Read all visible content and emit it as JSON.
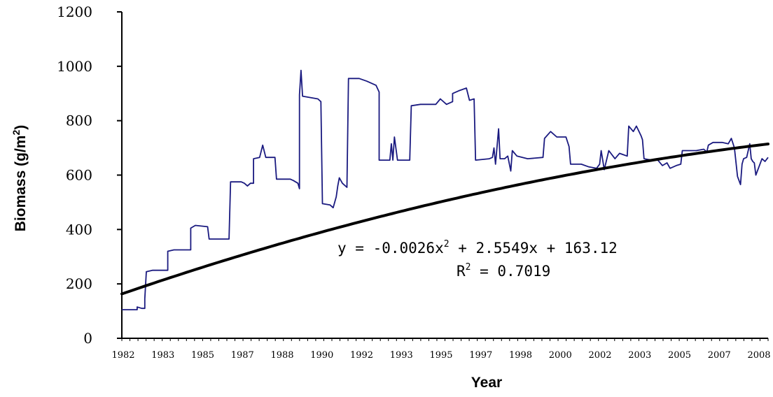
{
  "chart_data": {
    "type": "line",
    "xlabel": "Year",
    "ylabel": "Biomass (g/m",
    "ylabel_sup": "2",
    "ylabel_tail": ")",
    "ylim": [
      0,
      1200
    ],
    "yticks": [
      0,
      200,
      400,
      600,
      800,
      1000,
      1200
    ],
    "xticks": [
      "1982",
      "1983",
      "1985",
      "1987",
      "1988",
      "1990",
      "1992",
      "1993",
      "1995",
      "1997",
      "1998",
      "2000",
      "2002",
      "2003",
      "2005",
      "2007",
      "2008"
    ],
    "x_index_range": [
      0,
      320
    ],
    "colors": {
      "observed": "#1a1a80",
      "trend": "#000000"
    },
    "trend": {
      "a": -0.0026,
      "b": 2.5549,
      "c": 163.12
    },
    "equation_parts": [
      "y = -0.0026x",
      "2",
      " + 2.5549x + 163.12"
    ],
    "r2_parts": [
      "R",
      "2",
      " = 0.7019"
    ],
    "series": [
      {
        "values": [
          [
            0,
            105
          ],
          [
            10,
            105
          ],
          [
            10,
            115
          ],
          [
            13,
            110
          ],
          [
            15,
            110
          ],
          [
            15,
            145
          ],
          [
            16,
            245
          ],
          [
            20,
            250
          ],
          [
            30,
            250
          ],
          [
            30,
            320
          ],
          [
            34,
            325
          ],
          [
            45,
            325
          ],
          [
            45,
            405
          ],
          [
            48,
            415
          ],
          [
            56,
            410
          ],
          [
            57,
            365
          ],
          [
            70,
            365
          ],
          [
            71,
            575
          ],
          [
            78,
            575
          ],
          [
            80,
            570
          ],
          [
            82,
            560
          ],
          [
            84,
            570
          ],
          [
            86,
            570
          ],
          [
            86,
            660
          ],
          [
            90,
            665
          ],
          [
            92,
            710
          ],
          [
            94,
            665
          ],
          [
            100,
            665
          ],
          [
            101,
            585
          ],
          [
            110,
            585
          ],
          [
            112,
            580
          ],
          [
            115,
            570
          ],
          [
            116,
            550
          ],
          [
            116,
            895
          ],
          [
            117,
            985
          ],
          [
            118,
            890
          ],
          [
            128,
            880
          ],
          [
            130,
            870
          ],
          [
            131,
            495
          ],
          [
            136,
            490
          ],
          [
            138,
            480
          ],
          [
            140,
            520
          ],
          [
            141,
            560
          ],
          [
            142,
            590
          ],
          [
            144,
            570
          ],
          [
            147,
            555
          ],
          [
            148,
            955
          ],
          [
            155,
            955
          ],
          [
            160,
            945
          ],
          [
            166,
            930
          ],
          [
            168,
            905
          ],
          [
            168,
            655
          ],
          [
            175,
            655
          ],
          [
            176,
            715
          ],
          [
            177,
            655
          ],
          [
            178,
            740
          ],
          [
            180,
            655
          ],
          [
            188,
            655
          ],
          [
            189,
            855
          ],
          [
            195,
            860
          ],
          [
            205,
            860
          ],
          [
            208,
            880
          ],
          [
            212,
            860
          ],
          [
            216,
            870
          ],
          [
            216,
            900
          ],
          [
            220,
            910
          ],
          [
            225,
            920
          ],
          [
            227,
            875
          ],
          [
            230,
            880
          ],
          [
            231,
            655
          ],
          [
            240,
            660
          ],
          [
            242,
            665
          ],
          [
            243,
            700
          ],
          [
            244,
            640
          ],
          [
            246,
            770
          ],
          [
            247,
            660
          ],
          [
            250,
            660
          ],
          [
            252,
            670
          ],
          [
            254,
            615
          ],
          [
            255,
            690
          ],
          [
            258,
            670
          ],
          [
            265,
            660
          ],
          [
            275,
            665
          ],
          [
            276,
            735
          ],
          [
            280,
            760
          ],
          [
            284,
            740
          ],
          [
            290,
            740
          ],
          [
            292,
            705
          ],
          [
            293,
            640
          ],
          [
            300,
            640
          ],
          [
            305,
            630
          ],
          [
            310,
            625
          ],
          [
            312,
            640
          ],
          [
            313,
            690
          ],
          [
            315,
            620
          ],
          [
            318,
            690
          ],
          [
            322,
            660
          ],
          [
            325,
            680
          ],
          [
            330,
            670
          ],
          [
            331,
            780
          ],
          [
            334,
            760
          ],
          [
            336,
            780
          ],
          [
            339,
            745
          ],
          [
            340,
            730
          ],
          [
            341,
            660
          ],
          [
            346,
            655
          ],
          [
            350,
            655
          ],
          [
            353,
            635
          ],
          [
            356,
            645
          ],
          [
            358,
            625
          ],
          [
            362,
            635
          ],
          [
            365,
            640
          ],
          [
            366,
            690
          ],
          [
            370,
            690
          ],
          [
            375,
            690
          ],
          [
            380,
            695
          ],
          [
            382,
            685
          ],
          [
            383,
            710
          ],
          [
            386,
            720
          ],
          [
            392,
            720
          ],
          [
            396,
            715
          ],
          [
            398,
            735
          ],
          [
            400,
            700
          ],
          [
            402,
            595
          ],
          [
            404,
            565
          ],
          [
            405,
            640
          ],
          [
            406,
            660
          ],
          [
            408,
            665
          ],
          [
            410,
            715
          ],
          [
            411,
            660
          ],
          [
            412,
            650
          ],
          [
            413,
            645
          ],
          [
            414,
            600
          ],
          [
            416,
            630
          ],
          [
            418,
            660
          ],
          [
            420,
            650
          ],
          [
            422,
            665
          ]
        ]
      }
    ]
  }
}
